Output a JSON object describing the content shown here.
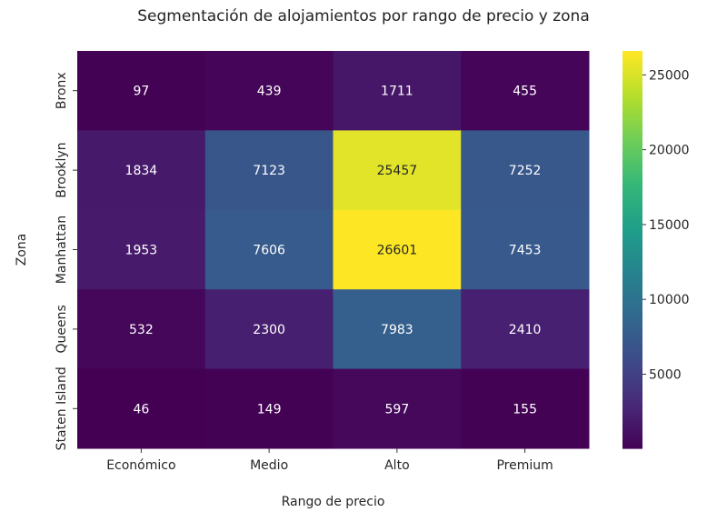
{
  "chart_data": {
    "type": "heatmap",
    "title": "Segmentación de alojamientos por rango de precio y zona",
    "xlabel": "Rango de precio",
    "ylabel": "Zona",
    "x_categories": [
      "Económico",
      "Medio",
      "Alto",
      "Premium"
    ],
    "y_categories": [
      "Bronx",
      "Brooklyn",
      "Manhattan",
      "Queens",
      "Staten Island"
    ],
    "values": [
      [
        97,
        439,
        1711,
        455
      ],
      [
        1834,
        7123,
        25457,
        7252
      ],
      [
        1953,
        7606,
        26601,
        7453
      ],
      [
        532,
        2300,
        7983,
        2410
      ],
      [
        46,
        149,
        597,
        155
      ]
    ],
    "colormap": "viridis",
    "colorbar": {
      "range": [
        46,
        26601
      ],
      "ticks": [
        5000,
        10000,
        15000,
        20000,
        25000
      ]
    },
    "grid": false
  }
}
